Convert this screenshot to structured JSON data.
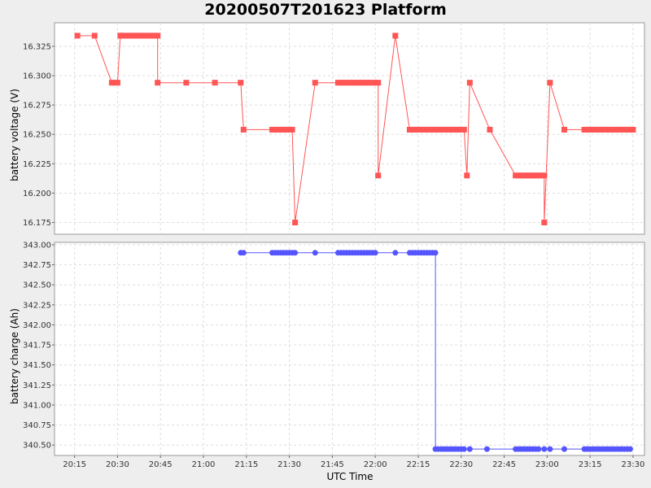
{
  "chart_data": [
    {
      "type": "line",
      "title": "20200507T201623 Platform",
      "xlabel": "UTC Time",
      "ylabel": "battery voltage (V)",
      "ylim": [
        16.165,
        16.345
      ],
      "yticks": [
        "16.175",
        "16.200",
        "16.225",
        "16.250",
        "16.275",
        "16.300",
        "16.325"
      ],
      "xlim": [
        "20:08",
        "23:34"
      ],
      "xticks": [
        "20:15",
        "20:30",
        "20:45",
        "21:00",
        "21:15",
        "21:30",
        "21:45",
        "22:00",
        "22:15",
        "22:30",
        "22:45",
        "23:00",
        "23:15",
        "23:30"
      ],
      "grid": true,
      "color": "#ff5555",
      "series": [
        {
          "x": [
            "20:16",
            "20:22",
            "20:28",
            "20:29",
            "20:30",
            "20:31",
            "20:31",
            "20:32",
            "20:33",
            "20:34",
            "20:35",
            "20:36",
            "20:37",
            "20:38",
            "20:39",
            "20:40",
            "20:41",
            "20:42",
            "20:43",
            "20:44",
            "20:44",
            "20:54",
            "21:04",
            "21:13",
            "21:14",
            "21:24",
            "21:25",
            "21:26",
            "21:27",
            "21:28",
            "21:29",
            "21:30",
            "21:31",
            "21:32",
            "21:39",
            "21:47",
            "21:48",
            "21:49",
            "21:50",
            "21:51",
            "21:52",
            "21:53",
            "21:54",
            "21:55",
            "21:56",
            "21:57",
            "21:58",
            "21:59",
            "22:00",
            "22:01",
            "22:01",
            "22:07",
            "22:12",
            "22:13",
            "22:14",
            "22:15",
            "22:16",
            "22:17",
            "22:18",
            "22:19",
            "22:20",
            "22:21",
            "22:22",
            "22:23",
            "22:24",
            "22:25",
            "22:26",
            "22:27",
            "22:28",
            "22:29",
            "22:30",
            "22:31",
            "22:32",
            "22:33",
            "22:40",
            "22:49",
            "22:50",
            "22:51",
            "22:52",
            "22:53",
            "22:54",
            "22:55",
            "22:56",
            "22:57",
            "22:58",
            "22:59",
            "22:59",
            "23:01",
            "23:06",
            "23:13",
            "23:14",
            "23:15",
            "23:16",
            "23:17",
            "23:18",
            "23:19",
            "23:20",
            "23:21",
            "23:22",
            "23:23",
            "23:24",
            "23:25",
            "23:26",
            "23:27",
            "23:28",
            "23:29",
            "23:30"
          ],
          "y": [
            16.334,
            16.334,
            16.294,
            16.294,
            16.294,
            16.334,
            16.334,
            16.334,
            16.334,
            16.334,
            16.334,
            16.334,
            16.334,
            16.334,
            16.334,
            16.334,
            16.334,
            16.334,
            16.334,
            16.334,
            16.294,
            16.294,
            16.294,
            16.294,
            16.254,
            16.254,
            16.254,
            16.254,
            16.254,
            16.254,
            16.254,
            16.254,
            16.254,
            16.175,
            16.294,
            16.294,
            16.294,
            16.294,
            16.294,
            16.294,
            16.294,
            16.294,
            16.294,
            16.294,
            16.294,
            16.294,
            16.294,
            16.294,
            16.294,
            16.294,
            16.215,
            16.334,
            16.254,
            16.254,
            16.254,
            16.254,
            16.254,
            16.254,
            16.254,
            16.254,
            16.254,
            16.254,
            16.254,
            16.254,
            16.254,
            16.254,
            16.254,
            16.254,
            16.254,
            16.254,
            16.254,
            16.254,
            16.215,
            16.294,
            16.254,
            16.215,
            16.215,
            16.215,
            16.215,
            16.215,
            16.215,
            16.215,
            16.215,
            16.215,
            16.215,
            16.215,
            16.175,
            16.294,
            16.254,
            16.254,
            16.254,
            16.254,
            16.254,
            16.254,
            16.254,
            16.254,
            16.254,
            16.254,
            16.254,
            16.254,
            16.254,
            16.254,
            16.254,
            16.254,
            16.254,
            16.254,
            16.254
          ]
        }
      ]
    },
    {
      "type": "line",
      "xlabel": "UTC Time",
      "ylabel": "battery charge (Ah)",
      "ylim": [
        340.37,
        343.03
      ],
      "yticks": [
        "340.50",
        "340.75",
        "341.00",
        "341.25",
        "341.50",
        "341.75",
        "342.00",
        "342.25",
        "342.50",
        "342.75",
        "343.00"
      ],
      "xlim": [
        "20:08",
        "23:34"
      ],
      "xticks": [
        "20:15",
        "20:30",
        "20:45",
        "21:00",
        "21:15",
        "21:30",
        "21:45",
        "22:00",
        "22:15",
        "22:30",
        "22:45",
        "23:00",
        "23:15",
        "23:30"
      ],
      "grid": true,
      "color": "#5555ff",
      "series": [
        {
          "x": [
            "21:13",
            "21:14",
            "21:24",
            "21:25",
            "21:26",
            "21:27",
            "21:28",
            "21:29",
            "21:30",
            "21:31",
            "21:32",
            "21:39",
            "21:47",
            "21:48",
            "21:49",
            "21:50",
            "21:51",
            "21:52",
            "21:53",
            "21:54",
            "21:55",
            "21:56",
            "21:57",
            "21:58",
            "21:59",
            "22:00",
            "22:07",
            "22:12",
            "22:13",
            "22:14",
            "22:15",
            "22:16",
            "22:17",
            "22:18",
            "22:19",
            "22:20",
            "22:21",
            "22:21",
            "22:22",
            "22:23",
            "22:24",
            "22:25",
            "22:26",
            "22:27",
            "22:28",
            "22:29",
            "22:30",
            "22:31",
            "22:33",
            "22:39",
            "22:49",
            "22:50",
            "22:51",
            "22:52",
            "22:53",
            "22:54",
            "22:55",
            "22:56",
            "22:57",
            "22:59",
            "23:01",
            "23:06",
            "23:13",
            "23:14",
            "23:15",
            "23:16",
            "23:17",
            "23:18",
            "23:19",
            "23:20",
            "23:21",
            "23:22",
            "23:23",
            "23:24",
            "23:25",
            "23:26",
            "23:27",
            "23:28",
            "23:29"
          ],
          "y": [
            342.9,
            342.9,
            342.9,
            342.9,
            342.9,
            342.9,
            342.9,
            342.9,
            342.9,
            342.9,
            342.9,
            342.9,
            342.9,
            342.9,
            342.9,
            342.9,
            342.9,
            342.9,
            342.9,
            342.9,
            342.9,
            342.9,
            342.9,
            342.9,
            342.9,
            342.9,
            342.9,
            342.9,
            342.9,
            342.9,
            342.9,
            342.9,
            342.9,
            342.9,
            342.9,
            342.9,
            342.9,
            340.45,
            340.45,
            340.45,
            340.45,
            340.45,
            340.45,
            340.45,
            340.45,
            340.45,
            340.45,
            340.45,
            340.45,
            340.45,
            340.45,
            340.45,
            340.45,
            340.45,
            340.45,
            340.45,
            340.45,
            340.45,
            340.45,
            340.45,
            340.45,
            340.45,
            340.45,
            340.45,
            340.45,
            340.45,
            340.45,
            340.45,
            340.45,
            340.45,
            340.45,
            340.45,
            340.45,
            340.45,
            340.45,
            340.45,
            340.45,
            340.45,
            340.45
          ]
        }
      ]
    }
  ]
}
